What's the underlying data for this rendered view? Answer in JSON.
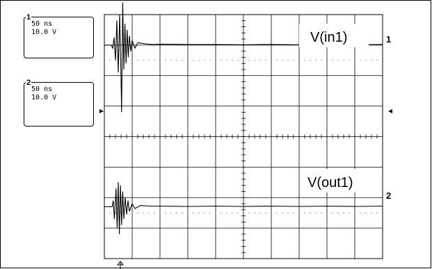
{
  "channels": [
    {
      "id": "1",
      "timebase": "50 ns",
      "volts": "10.0 V",
      "trace_label": "V(in1)",
      "marker": "1"
    },
    {
      "id": "2",
      "timebase": "50 ns",
      "volts": "10.0 V",
      "trace_label": "V(out1)",
      "marker": "2"
    }
  ],
  "chart_data": {
    "type": "line",
    "divisions": {
      "x": 10,
      "y": 8
    },
    "grid": true,
    "series": [
      {
        "name": "V(in1)",
        "baseline_div": 1,
        "points": [
          [
            0,
            0
          ],
          [
            0.25,
            0
          ],
          [
            0.3,
            -0.1
          ],
          [
            0.35,
            0.25
          ],
          [
            0.4,
            -0.5
          ],
          [
            0.45,
            0.8
          ],
          [
            0.5,
            -0.9
          ],
          [
            0.55,
            1.0
          ],
          [
            0.6,
            -1.1
          ],
          [
            0.62,
            -2.2
          ],
          [
            0.66,
            1.4
          ],
          [
            0.7,
            -0.8
          ],
          [
            0.74,
            0.7
          ],
          [
            0.78,
            -0.6
          ],
          [
            0.82,
            0.5
          ],
          [
            0.86,
            -0.4
          ],
          [
            0.9,
            0.3
          ],
          [
            0.95,
            -0.2
          ],
          [
            1.0,
            0.15
          ],
          [
            1.1,
            -0.1
          ],
          [
            1.2,
            0.08
          ],
          [
            1.4,
            0.05
          ],
          [
            1.7,
            0.02
          ],
          [
            2.0,
            0.03
          ],
          [
            3.0,
            0.02
          ],
          [
            4.0,
            0.02
          ],
          [
            5.0,
            0.01
          ],
          [
            6.0,
            0.02
          ],
          [
            7.0,
            0.01
          ],
          [
            8.0,
            0.02
          ],
          [
            9.0,
            0.01
          ],
          [
            10.0,
            0.02
          ]
        ]
      },
      {
        "name": "V(out1)",
        "baseline_div": 6.3,
        "points": [
          [
            0,
            0
          ],
          [
            0.28,
            0
          ],
          [
            0.32,
            0.2
          ],
          [
            0.36,
            -0.4
          ],
          [
            0.42,
            0.6
          ],
          [
            0.46,
            -0.7
          ],
          [
            0.5,
            0.8
          ],
          [
            0.54,
            -0.9
          ],
          [
            0.58,
            0.7
          ],
          [
            0.62,
            -0.6
          ],
          [
            0.66,
            0.5
          ],
          [
            0.7,
            -0.4
          ],
          [
            0.75,
            0.3
          ],
          [
            0.8,
            -0.25
          ],
          [
            0.85,
            0.2
          ],
          [
            0.9,
            -0.15
          ],
          [
            1.0,
            0.1
          ],
          [
            1.1,
            -0.06
          ],
          [
            1.3,
            0.04
          ],
          [
            1.6,
            0.02
          ],
          [
            2.0,
            0.02
          ],
          [
            3.0,
            0.01
          ],
          [
            4.0,
            0.02
          ],
          [
            5.0,
            0.01
          ],
          [
            6.0,
            0.02
          ],
          [
            7.0,
            0.01
          ],
          [
            8.0,
            0.02
          ],
          [
            9.0,
            0.01
          ],
          [
            10.0,
            0.02
          ]
        ]
      }
    ]
  }
}
